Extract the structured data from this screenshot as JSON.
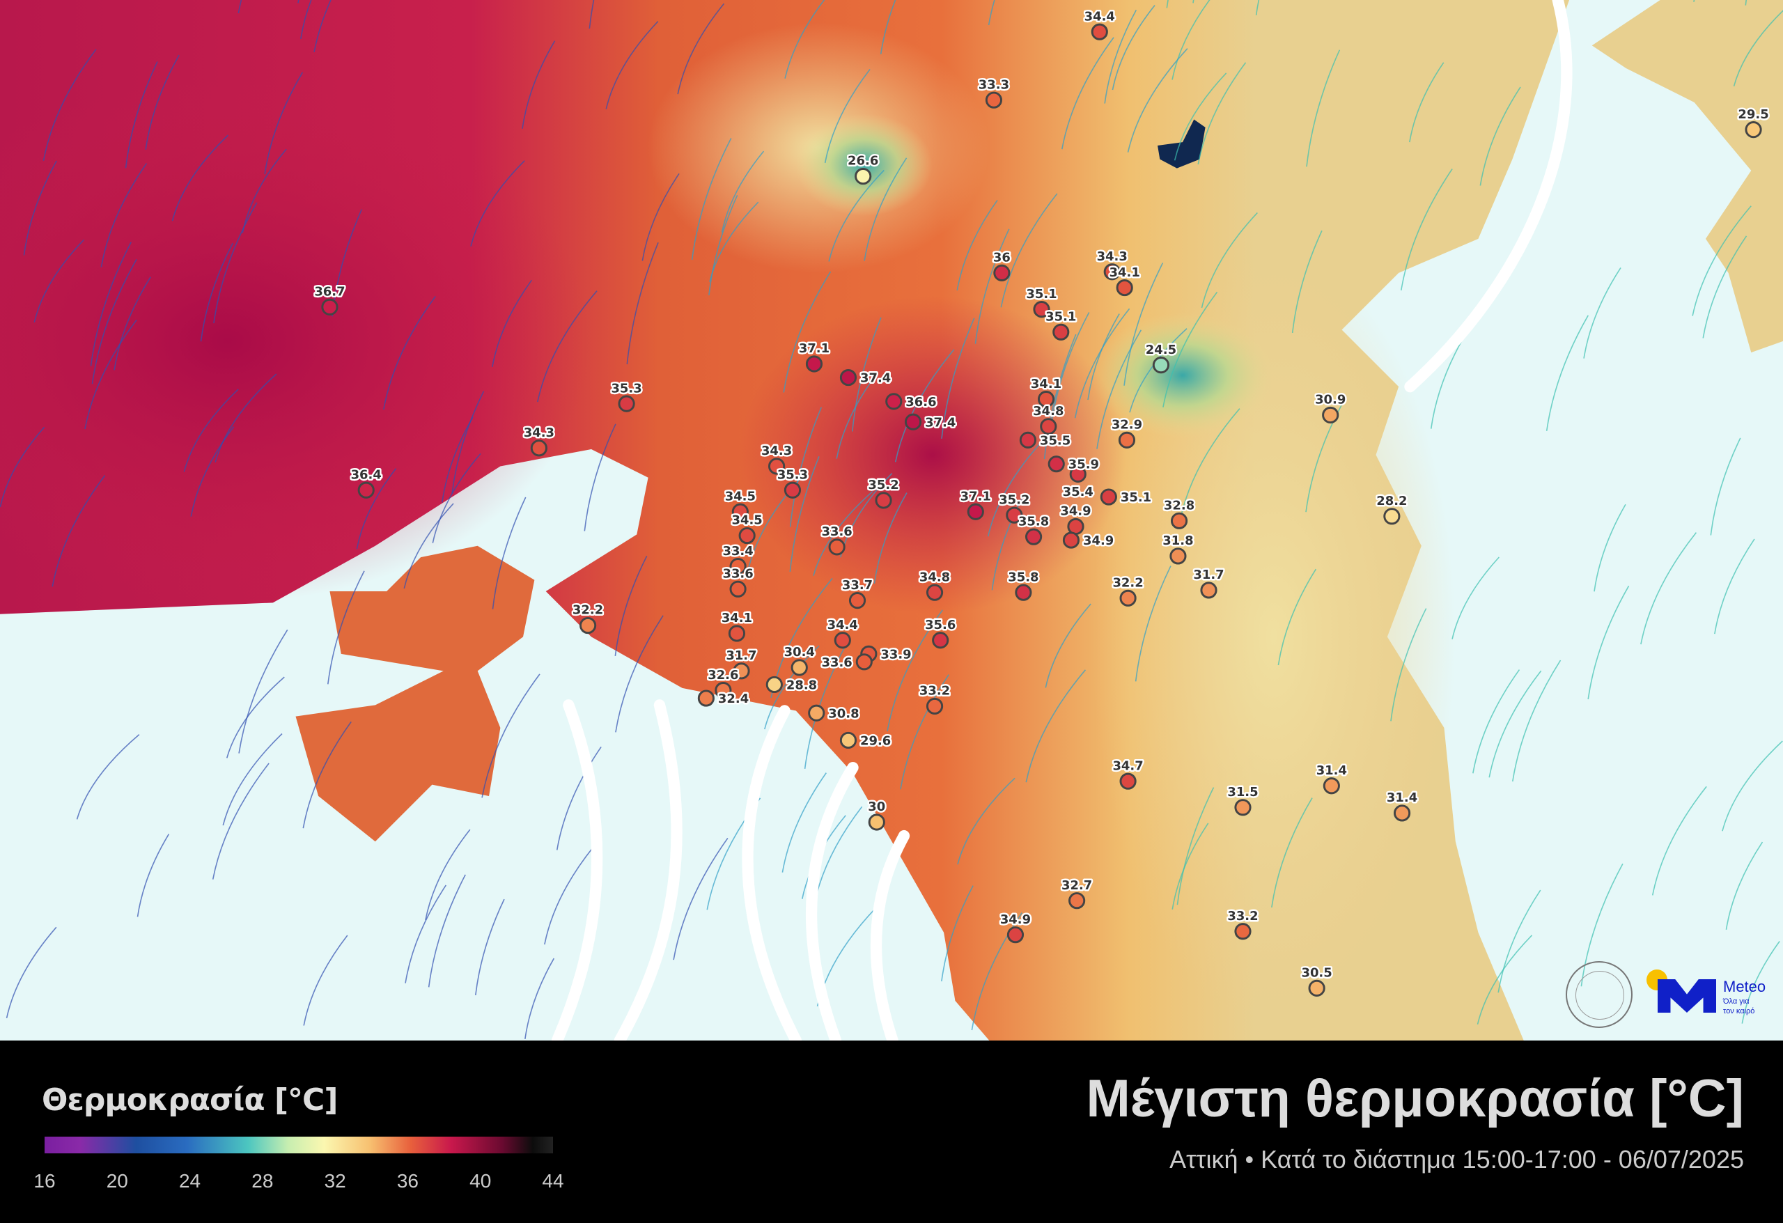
{
  "map": {
    "region": "Αττική",
    "wind_streamlines": true,
    "sea_breeze_arrows": true
  },
  "stations": [
    {
      "value": "34.4"
    },
    {
      "value": "33.3"
    },
    {
      "value": "26.6"
    },
    {
      "value": "36.7"
    },
    {
      "value": "35.3"
    },
    {
      "value": "34.3"
    },
    {
      "value": "36.4"
    },
    {
      "value": "37.1"
    },
    {
      "value": "37.4"
    },
    {
      "value": "36.6"
    },
    {
      "value": "37.4"
    },
    {
      "value": "36"
    },
    {
      "value": "34.3"
    },
    {
      "value": "34.1"
    },
    {
      "value": "35.1"
    },
    {
      "value": "35.1"
    },
    {
      "value": "24.5"
    },
    {
      "value": "34.1"
    },
    {
      "value": "34.8"
    },
    {
      "value": "35.5"
    },
    {
      "value": "32.9"
    },
    {
      "value": "35.9"
    },
    {
      "value": "35.4"
    },
    {
      "value": "35.1"
    },
    {
      "value": "34.3"
    },
    {
      "value": "35.3"
    },
    {
      "value": "35.2"
    },
    {
      "value": "37.1"
    },
    {
      "value": "35.2"
    },
    {
      "value": "35.8"
    },
    {
      "value": "34.9"
    },
    {
      "value": "34.9"
    },
    {
      "value": "34.5"
    },
    {
      "value": "34.5"
    },
    {
      "value": "33.6"
    },
    {
      "value": "33.4"
    },
    {
      "value": "33.6"
    },
    {
      "value": "33.7"
    },
    {
      "value": "34.8"
    },
    {
      "value": "35.8"
    },
    {
      "value": "32.8"
    },
    {
      "value": "31.8"
    },
    {
      "value": "31.7"
    },
    {
      "value": "32.2"
    },
    {
      "value": "30.9"
    },
    {
      "value": "28.2"
    },
    {
      "value": "29.5"
    },
    {
      "value": "32.2"
    },
    {
      "value": "34.1"
    },
    {
      "value": "34.4"
    },
    {
      "value": "33.9"
    },
    {
      "value": "33.6"
    },
    {
      "value": "35.6"
    },
    {
      "value": "31.7"
    },
    {
      "value": "30.4"
    },
    {
      "value": "32.6"
    },
    {
      "value": "32.4"
    },
    {
      "value": "28.8"
    },
    {
      "value": "30.8"
    },
    {
      "value": "33.2"
    },
    {
      "value": "29.6"
    },
    {
      "value": "30"
    },
    {
      "value": "34.7"
    },
    {
      "value": "31.5"
    },
    {
      "value": "31.4"
    },
    {
      "value": "31.4"
    },
    {
      "value": "32.7"
    },
    {
      "value": "34.9"
    },
    {
      "value": "33.2"
    },
    {
      "value": "30.5"
    }
  ],
  "legend": {
    "title": "Θερμοκρασία [°C]",
    "ticks": [
      "16",
      "20",
      "24",
      "28",
      "32",
      "36",
      "40",
      "44"
    ],
    "range": [
      16,
      44
    ],
    "colors": [
      "#7a1fa0",
      "#1e4fa0",
      "#4cc6c0",
      "#fbf7b0",
      "#f7c070",
      "#e8603c",
      "#c8184c",
      "#6a0a30",
      "#0c0c0c"
    ]
  },
  "header": {
    "title": "Μέγιστη θερμοκρασία [°C]",
    "subtitle": "Αττική • Κατά το διάστημα 15:00-17:00 - 06/07/2025"
  },
  "logos": {
    "observatory": "ΕΘΝΙΚΟΝ ΑΣΤΕΡΟΣΚΟΠΕΙΟΝ ΑΘΗΝΩΝ • NATIONAL OBSERVATORY OF ATHENS",
    "meteo_name": "Meteo",
    "meteo_tagline_1": "Όλα για",
    "meteo_tagline_2": "τον καιρό",
    "meteo_blue": "#1020c8",
    "meteo_yellow": "#f8c000"
  }
}
